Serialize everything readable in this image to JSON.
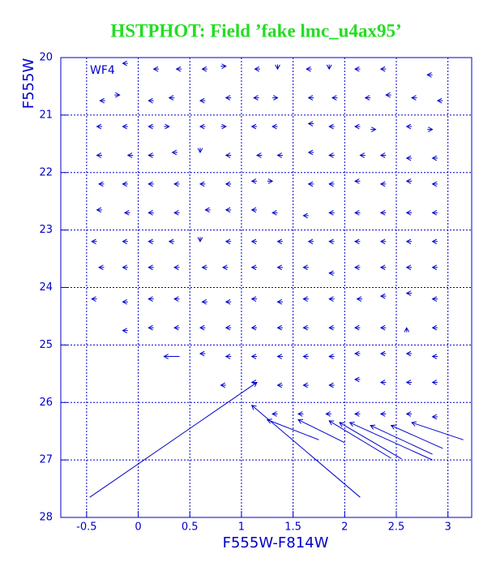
{
  "chart_data": {
    "type": "vector",
    "title": "HSTPHOT: Field ’fake lmc_u4ax95’",
    "panel_label": "WF4",
    "x_label": "F555W-F814W",
    "y_label": "F555W",
    "color": "#0000cc",
    "xlim": [
      -0.75,
      3.23
    ],
    "ylim": [
      28,
      20
    ],
    "xticks": [
      -0.5,
      0,
      0.5,
      1,
      1.5,
      2,
      2.5,
      3
    ],
    "yticks": [
      20,
      21,
      22,
      23,
      24,
      25,
      26,
      27,
      28
    ],
    "grid": true,
    "vectors": [
      [
        -0.15,
        20.1,
        0.05,
        0
      ],
      [
        0.15,
        20.2,
        0.05,
        0
      ],
      [
        0.37,
        20.2,
        0.05,
        0
      ],
      [
        0.62,
        20.2,
        0.05,
        0
      ],
      [
        0.85,
        20.15,
        -0.05,
        0
      ],
      [
        1.13,
        20.2,
        0.05,
        0
      ],
      [
        1.35,
        20.2,
        0,
        -0.08
      ],
      [
        1.63,
        20.2,
        0.05,
        0
      ],
      [
        1.85,
        20.2,
        0,
        -0.08
      ],
      [
        2.1,
        20.2,
        0.05,
        0
      ],
      [
        2.35,
        20.2,
        0.05,
        0
      ],
      [
        2.8,
        20.3,
        0.05,
        0
      ],
      [
        -0.37,
        20.75,
        0.05,
        0
      ],
      [
        -0.18,
        20.65,
        -0.05,
        0
      ],
      [
        0.1,
        20.75,
        0.05,
        0
      ],
      [
        0.3,
        20.7,
        0.05,
        0
      ],
      [
        0.6,
        20.75,
        0.05,
        0
      ],
      [
        0.85,
        20.7,
        0.05,
        0
      ],
      [
        1.12,
        20.7,
        0.05,
        0
      ],
      [
        1.35,
        20.7,
        -0.05,
        0
      ],
      [
        1.65,
        20.7,
        0.05,
        0
      ],
      [
        1.88,
        20.7,
        0.05,
        0
      ],
      [
        2.2,
        20.7,
        0.05,
        0
      ],
      [
        2.4,
        20.65,
        0.05,
        0
      ],
      [
        2.65,
        20.7,
        0.05,
        0
      ],
      [
        2.9,
        20.75,
        0.05,
        0
      ],
      [
        -0.4,
        21.2,
        0.05,
        0
      ],
      [
        -0.15,
        21.2,
        0.05,
        0
      ],
      [
        0.1,
        21.2,
        0.05,
        0
      ],
      [
        0.3,
        21.2,
        -0.05,
        0
      ],
      [
        0.6,
        21.2,
        0.05,
        0
      ],
      [
        0.85,
        21.2,
        -0.05,
        0
      ],
      [
        1.1,
        21.2,
        0.05,
        0
      ],
      [
        1.3,
        21.2,
        0.05,
        0
      ],
      [
        1.65,
        21.15,
        0.05,
        0
      ],
      [
        1.85,
        21.2,
        0.05,
        0
      ],
      [
        2.1,
        21.2,
        0.05,
        0
      ],
      [
        2.3,
        21.25,
        -0.05,
        0
      ],
      [
        2.6,
        21.2,
        0.05,
        0
      ],
      [
        2.85,
        21.25,
        -0.05,
        0
      ],
      [
        -0.4,
        21.7,
        0.05,
        0
      ],
      [
        -0.1,
        21.7,
        0.05,
        0
      ],
      [
        0.1,
        21.7,
        0.05,
        0
      ],
      [
        0.33,
        21.65,
        0.05,
        0
      ],
      [
        0.6,
        21.65,
        0,
        -0.08
      ],
      [
        0.85,
        21.7,
        0.05,
        0
      ],
      [
        1.15,
        21.7,
        0.05,
        0
      ],
      [
        1.35,
        21.7,
        0.05,
        0
      ],
      [
        1.65,
        21.65,
        0.05,
        0
      ],
      [
        1.85,
        21.7,
        0.05,
        0
      ],
      [
        2.15,
        21.7,
        0.05,
        0
      ],
      [
        2.35,
        21.7,
        0.05,
        0
      ],
      [
        2.6,
        21.75,
        0.05,
        0
      ],
      [
        2.85,
        21.75,
        0.05,
        0
      ],
      [
        -0.38,
        22.2,
        0.05,
        0
      ],
      [
        -0.15,
        22.2,
        0.05,
        0
      ],
      [
        0.1,
        22.2,
        0.05,
        0
      ],
      [
        0.35,
        22.2,
        0.05,
        0
      ],
      [
        0.6,
        22.2,
        0.05,
        0
      ],
      [
        0.85,
        22.2,
        0.05,
        0
      ],
      [
        1.1,
        22.15,
        0.05,
        0
      ],
      [
        1.3,
        22.15,
        -0.05,
        0
      ],
      [
        1.65,
        22.2,
        0.05,
        0
      ],
      [
        1.85,
        22.2,
        0.05,
        0
      ],
      [
        2.1,
        22.15,
        0.05,
        0
      ],
      [
        2.35,
        22.2,
        0.05,
        0
      ],
      [
        2.6,
        22.15,
        0.05,
        0
      ],
      [
        2.85,
        22.2,
        0.05,
        0
      ],
      [
        -0.4,
        22.65,
        0.05,
        0
      ],
      [
        -0.13,
        22.7,
        0.05,
        0
      ],
      [
        0.1,
        22.7,
        0.05,
        0
      ],
      [
        0.35,
        22.7,
        0.05,
        0
      ],
      [
        0.65,
        22.65,
        0.05,
        0
      ],
      [
        0.85,
        22.65,
        0.05,
        0
      ],
      [
        1.1,
        22.65,
        0.05,
        0
      ],
      [
        1.3,
        22.7,
        0.05,
        0
      ],
      [
        1.6,
        22.75,
        0.05,
        0
      ],
      [
        1.85,
        22.7,
        0.05,
        0
      ],
      [
        2.1,
        22.7,
        0.05,
        0
      ],
      [
        2.35,
        22.7,
        0.05,
        0
      ],
      [
        2.6,
        22.7,
        0.05,
        0
      ],
      [
        2.85,
        22.7,
        0.05,
        0
      ],
      [
        -0.45,
        23.2,
        0.05,
        0
      ],
      [
        -0.15,
        23.2,
        0.05,
        0
      ],
      [
        0.1,
        23.2,
        0.05,
        0
      ],
      [
        0.3,
        23.2,
        0.05,
        0
      ],
      [
        0.6,
        23.2,
        0,
        -0.08
      ],
      [
        0.85,
        23.2,
        0.05,
        0
      ],
      [
        1.1,
        23.2,
        0.05,
        0
      ],
      [
        1.35,
        23.2,
        0.05,
        0
      ],
      [
        1.65,
        23.2,
        0.05,
        0
      ],
      [
        1.85,
        23.2,
        0.05,
        0
      ],
      [
        2.1,
        23.2,
        0.05,
        0
      ],
      [
        2.35,
        23.2,
        0.05,
        0
      ],
      [
        2.6,
        23.2,
        0.05,
        0
      ],
      [
        2.85,
        23.2,
        0.05,
        0
      ],
      [
        -0.38,
        23.65,
        0.05,
        0
      ],
      [
        -0.15,
        23.65,
        0.05,
        0
      ],
      [
        0.1,
        23.65,
        0.05,
        0
      ],
      [
        0.35,
        23.65,
        0.05,
        0
      ],
      [
        0.62,
        23.65,
        0.05,
        0
      ],
      [
        0.82,
        23.65,
        0.05,
        0
      ],
      [
        1.1,
        23.65,
        0.05,
        0
      ],
      [
        1.35,
        23.65,
        0.05,
        0
      ],
      [
        1.6,
        23.65,
        0.05,
        0
      ],
      [
        1.85,
        23.75,
        0.05,
        0
      ],
      [
        2.1,
        23.65,
        0.05,
        0
      ],
      [
        2.35,
        23.65,
        0.05,
        0
      ],
      [
        2.6,
        23.65,
        0.05,
        0
      ],
      [
        2.85,
        23.65,
        0.05,
        0
      ],
      [
        -0.45,
        24.2,
        0.05,
        0
      ],
      [
        -0.15,
        24.25,
        0.05,
        0
      ],
      [
        0.1,
        24.2,
        0.05,
        0
      ],
      [
        0.35,
        24.2,
        0.05,
        0
      ],
      [
        0.62,
        24.25,
        0.05,
        0
      ],
      [
        0.85,
        24.25,
        0.05,
        0
      ],
      [
        1.1,
        24.2,
        0.05,
        0
      ],
      [
        1.35,
        24.25,
        0.05,
        0
      ],
      [
        1.6,
        24.2,
        0.05,
        0
      ],
      [
        1.85,
        24.2,
        0.05,
        0
      ],
      [
        2.12,
        24.2,
        0.05,
        0
      ],
      [
        2.35,
        24.15,
        0.05,
        0
      ],
      [
        2.6,
        24.1,
        0.05,
        0
      ],
      [
        2.85,
        24.2,
        0.05,
        0
      ],
      [
        -0.15,
        24.75,
        0.05,
        0
      ],
      [
        0.1,
        24.7,
        0.05,
        0
      ],
      [
        0.35,
        24.7,
        0.05,
        0
      ],
      [
        0.6,
        24.7,
        0.05,
        0
      ],
      [
        0.85,
        24.7,
        0.05,
        0
      ],
      [
        1.1,
        24.7,
        0.05,
        0
      ],
      [
        1.35,
        24.7,
        0.05,
        0
      ],
      [
        1.6,
        24.7,
        0.05,
        0
      ],
      [
        1.85,
        24.7,
        0.05,
        0
      ],
      [
        2.1,
        24.7,
        0.05,
        0
      ],
      [
        2.35,
        24.7,
        0.05,
        0
      ],
      [
        2.6,
        24.7,
        0,
        0.08
      ],
      [
        2.85,
        24.7,
        0.05,
        0
      ],
      [
        0.25,
        25.2,
        0.15,
        0
      ],
      [
        0.6,
        25.15,
        0.05,
        0
      ],
      [
        0.85,
        25.2,
        0.05,
        0
      ],
      [
        1.1,
        25.2,
        0.05,
        0
      ],
      [
        1.35,
        25.2,
        0.05,
        0
      ],
      [
        1.6,
        25.2,
        0.05,
        0
      ],
      [
        1.85,
        25.2,
        0.05,
        0
      ],
      [
        2.1,
        25.15,
        0.05,
        0
      ],
      [
        2.35,
        25.15,
        0.05,
        0
      ],
      [
        2.6,
        25.15,
        0.05,
        0
      ],
      [
        2.85,
        25.2,
        0.05,
        0
      ],
      [
        0.8,
        25.7,
        0.05,
        0
      ],
      [
        1.1,
        25.65,
        0.05,
        0
      ],
      [
        1.35,
        25.7,
        0.05,
        0
      ],
      [
        1.6,
        25.7,
        0.05,
        0
      ],
      [
        1.85,
        25.7,
        0.05,
        0
      ],
      [
        2.1,
        25.6,
        0.05,
        0
      ],
      [
        2.35,
        25.65,
        0.05,
        0
      ],
      [
        2.6,
        25.65,
        0.05,
        0
      ],
      [
        2.85,
        25.65,
        0.05,
        0
      ],
      [
        1.3,
        26.2,
        0.05,
        0
      ],
      [
        1.55,
        26.2,
        0.05,
        0
      ],
      [
        1.82,
        26.2,
        0.05,
        0
      ],
      [
        2.1,
        26.2,
        0.05,
        0
      ],
      [
        2.35,
        26.2,
        0.05,
        0
      ],
      [
        2.6,
        26.2,
        0.05,
        0
      ],
      [
        2.85,
        26.25,
        0.05,
        0
      ],
      [
        1.15,
        25.65,
        -1.62,
        2.0
      ],
      [
        1.1,
        26.05,
        1.05,
        1.6
      ],
      [
        1.25,
        26.3,
        0.5,
        0.35
      ],
      [
        1.55,
        26.3,
        0.45,
        0.4
      ],
      [
        1.85,
        26.32,
        0.6,
        0.65
      ],
      [
        1.95,
        26.35,
        0.6,
        0.63
      ],
      [
        2.05,
        26.35,
        0.8,
        0.65
      ],
      [
        2.25,
        26.4,
        0.6,
        0.5
      ],
      [
        2.45,
        26.4,
        0.5,
        0.4
      ],
      [
        2.65,
        26.35,
        0.5,
        0.3
      ]
    ]
  }
}
